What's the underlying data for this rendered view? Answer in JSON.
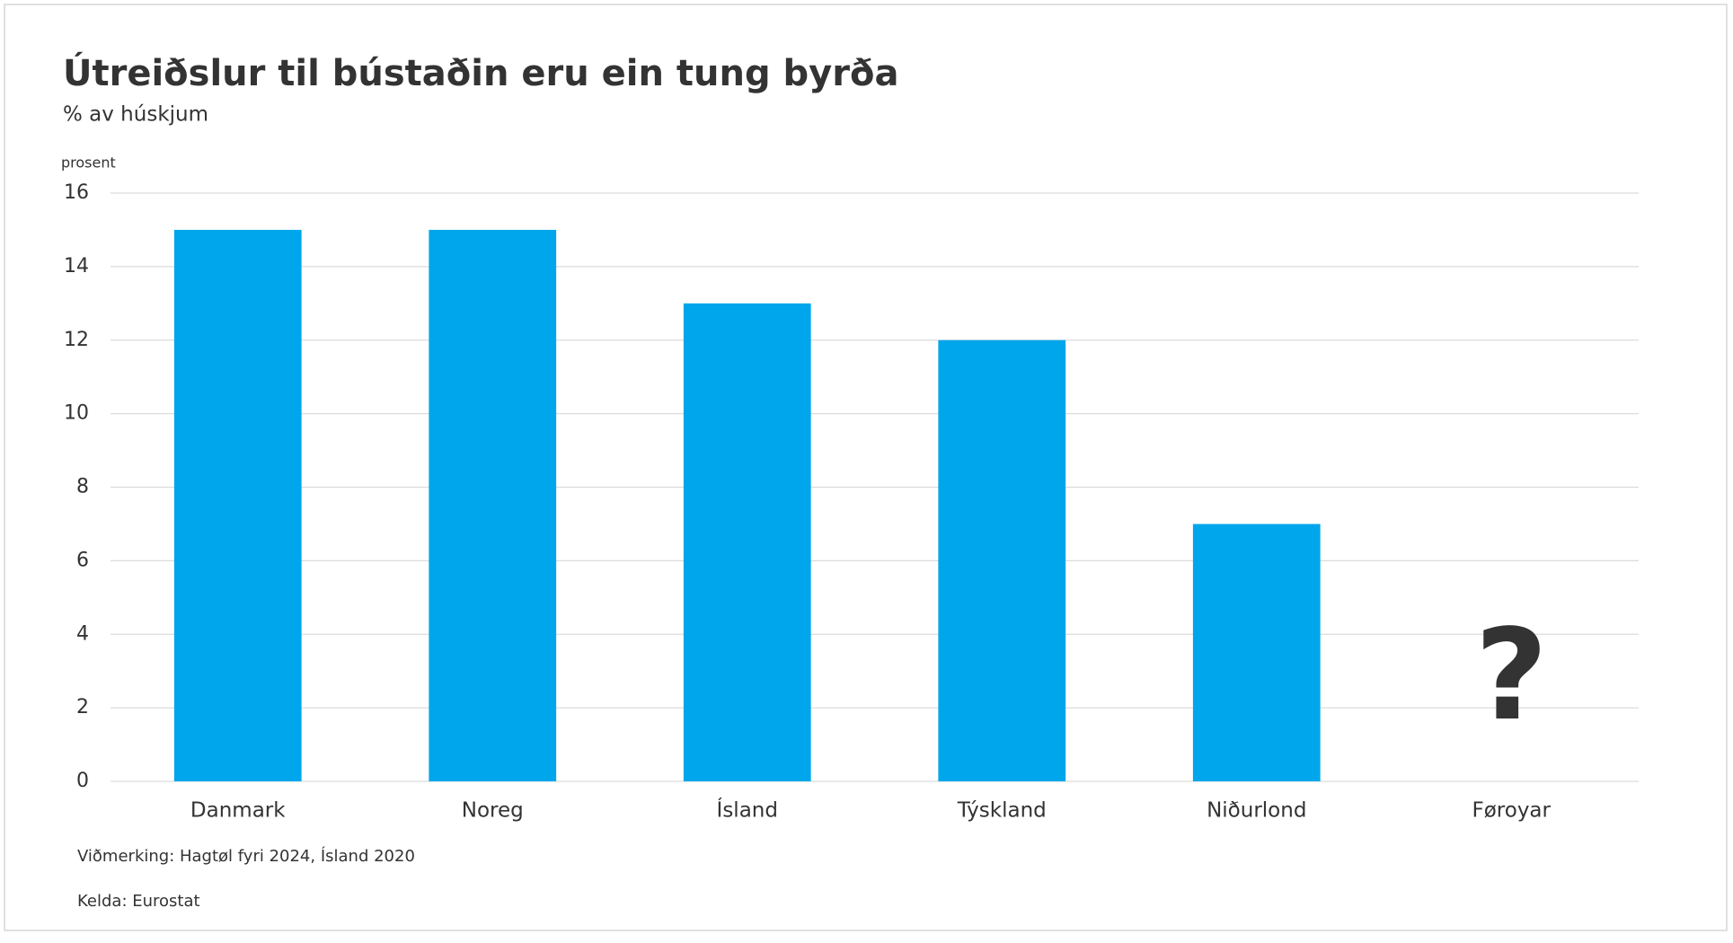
{
  "chart_data": {
    "type": "bar",
    "title": "Útreiðslur til bústaðin eru ein tung byrða",
    "subtitle": "% av húskjum",
    "y_axis_label": "prosent",
    "categories": [
      "Danmark",
      "Noreg",
      "Ísland",
      "Týskland",
      "Niðurlond",
      "Føroyar"
    ],
    "values": [
      15,
      15,
      13,
      12,
      7,
      null
    ],
    "color": "#00a6eb",
    "annotation": "?",
    "ylim": [
      0,
      16
    ],
    "yticks": [
      0,
      2,
      4,
      6,
      8,
      10,
      12,
      14,
      16
    ],
    "grid": true,
    "note": "Viðmerking: Hagtøl fyri 2024, Ísland 2020",
    "source": "Kelda: Eurostat"
  }
}
